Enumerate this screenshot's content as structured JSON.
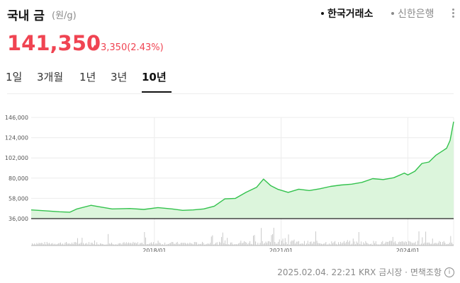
{
  "header": {
    "title": "국내 금",
    "unit": "(원/g)",
    "sources": [
      "한국거래소",
      "신한은행"
    ],
    "active_source": "한국거래소"
  },
  "price": {
    "current": "141,350",
    "change": "3,350",
    "change_pct": "(2.43%)",
    "direction": "up"
  },
  "tabs": {
    "items": [
      "1일",
      "3개월",
      "1년",
      "3년",
      "10년"
    ],
    "active": "10년"
  },
  "footer": {
    "timestamp": "2025.02.04. 22:21",
    "source": "KRX 금시장",
    "disclaimer": "면책조항"
  },
  "colors": {
    "price_up": "#f04452",
    "line": "#33c24d",
    "area": "#dcf5dc",
    "volume": "#c4c4c4"
  },
  "chart_data": {
    "type": "area",
    "title": "",
    "xlabel": "",
    "ylabel": "",
    "ylim": [
      36000,
      146000
    ],
    "yticks": [
      36000,
      58000,
      80000,
      102000,
      124000,
      146000
    ],
    "ytick_labels": [
      "36,000",
      "58,000",
      "80,000",
      "102,000",
      "124,000",
      "146,000"
    ],
    "xlim": [
      "2015-02",
      "2025-02"
    ],
    "xticks": [
      "2018-01",
      "2021-01",
      "2024-01"
    ],
    "xtick_labels": [
      "2018/01",
      "2021/01",
      "2024/01"
    ],
    "grid": true,
    "series": [
      {
        "x": [
          "2015-02",
          "2015-06",
          "2015-10",
          "2016-01",
          "2016-03",
          "2016-07",
          "2016-10",
          "2017-01",
          "2017-06",
          "2017-10",
          "2018-02",
          "2018-06",
          "2018-09",
          "2018-12",
          "2019-03",
          "2019-06",
          "2019-09",
          "2019-12",
          "2020-03",
          "2020-06",
          "2020-08",
          "2020-10",
          "2020-12",
          "2021-03",
          "2021-06",
          "2021-09",
          "2021-12",
          "2022-03",
          "2022-06",
          "2022-09",
          "2022-12",
          "2023-03",
          "2023-06",
          "2023-09",
          "2023-12",
          "2024-01",
          "2024-03",
          "2024-05",
          "2024-07",
          "2024-09",
          "2024-11",
          "2024-12",
          "2025-01",
          "2025-02"
        ],
        "values": [
          45500,
          44500,
          43500,
          43000,
          46500,
          50500,
          48500,
          46500,
          47000,
          46000,
          48000,
          46500,
          45000,
          45500,
          46500,
          49500,
          57500,
          58000,
          64500,
          70000,
          79000,
          72000,
          68000,
          64500,
          68000,
          66500,
          68500,
          71000,
          72500,
          73500,
          75500,
          79500,
          78500,
          80500,
          85500,
          83500,
          87500,
          96000,
          97500,
          105000,
          110000,
          112500,
          121000,
          141350
        ]
      }
    ]
  }
}
